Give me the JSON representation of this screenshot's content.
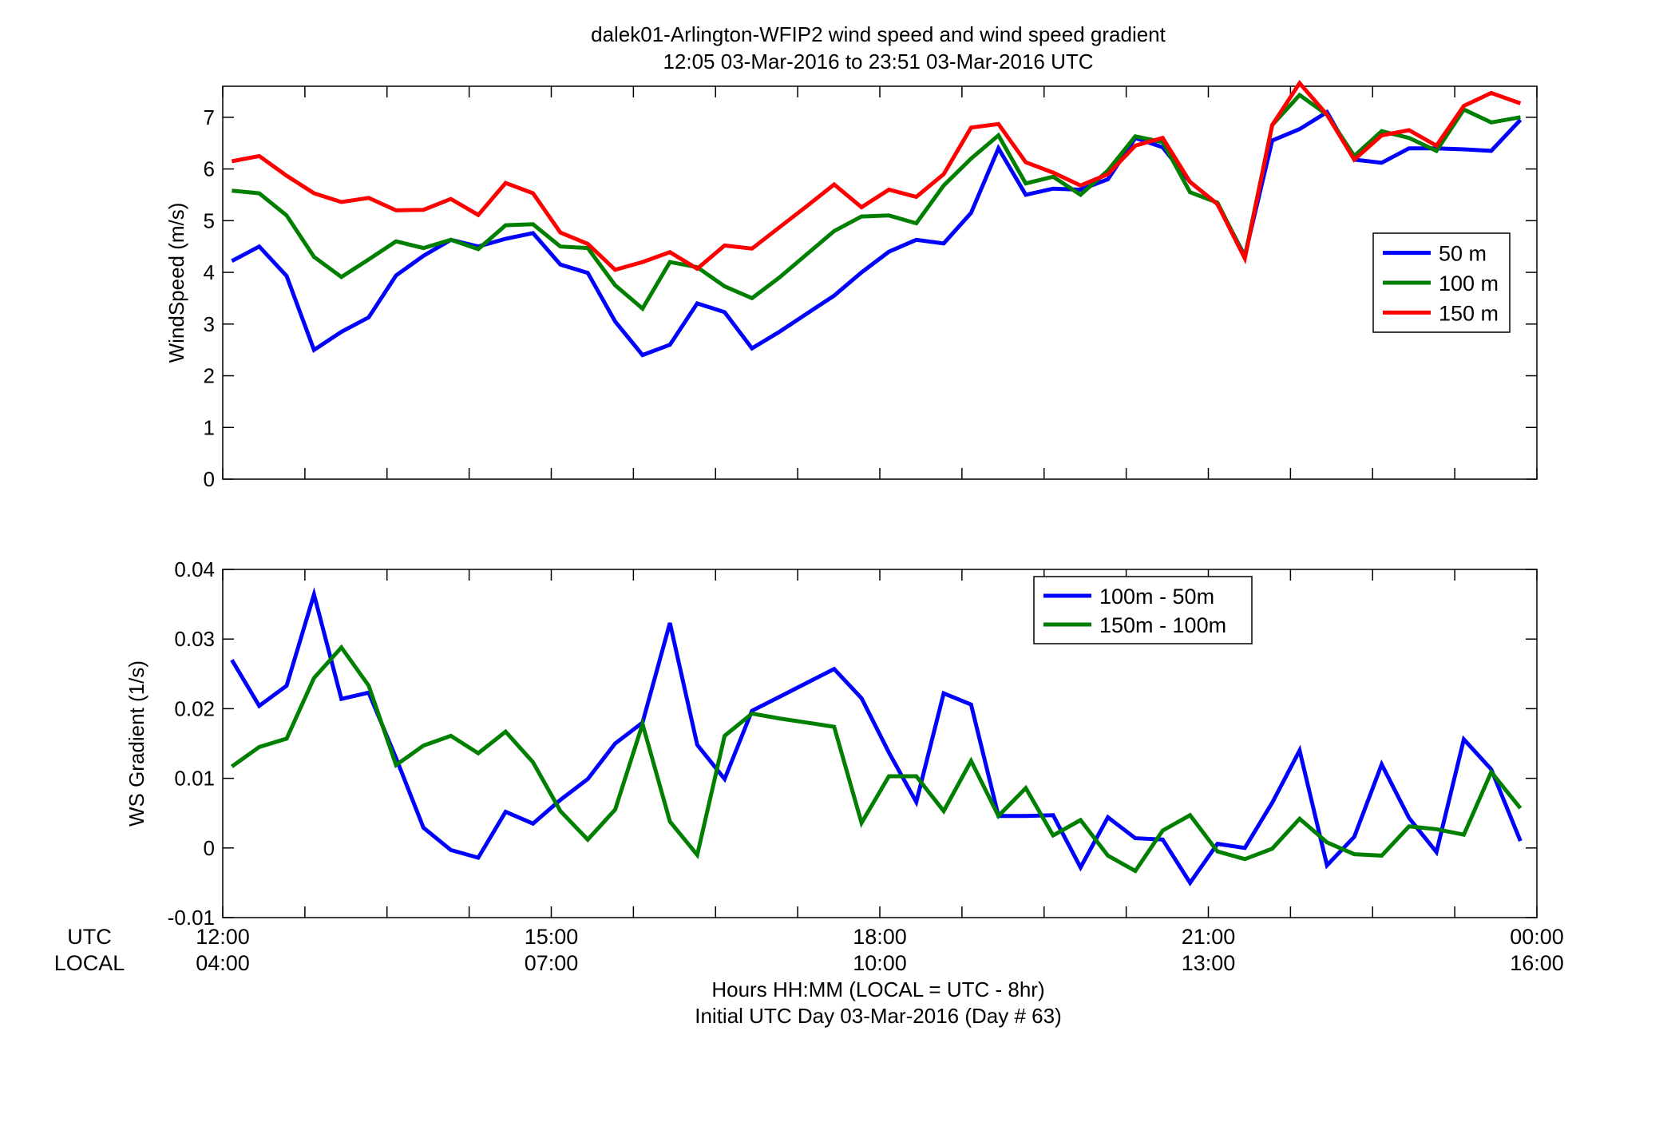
{
  "title_line1": "dalek01-Arlington-WFIP2  wind speed and wind speed gradient",
  "title_line2": "12:05 03-Mar-2016 to 23:51 03-Mar-2016  UTC",
  "xaxis": {
    "utc_label": "UTC",
    "local_label": "LOCAL",
    "utc_ticks": [
      "12:00",
      "15:00",
      "18:00",
      "21:00",
      "00:00"
    ],
    "local_ticks": [
      "04:00",
      "07:00",
      "10:00",
      "13:00",
      "16:00"
    ],
    "label_line1": "Hours HH:MM  (LOCAL = UTC - 8hr)",
    "label_line2": "Initial UTC Day 03-Mar-2016 (Day # 63)"
  },
  "colors": {
    "blue": "#0000ff",
    "green": "#007f00",
    "red": "#ff0000"
  },
  "chart_data": [
    {
      "type": "line",
      "ylabel": "WindSpeed (m/s)",
      "xlim": [
        12,
        24
      ],
      "ylim": [
        0,
        7.6
      ],
      "yticks": [
        0,
        1,
        2,
        3,
        4,
        5,
        6,
        7
      ],
      "ytick_labels": [
        "0",
        "1",
        "2",
        "3",
        "4",
        "5",
        "6",
        "7"
      ],
      "grid": false,
      "legend_position": "right",
      "x": [
        12.083,
        12.333,
        12.583,
        12.833,
        13.083,
        13.333,
        13.583,
        13.833,
        14.083,
        14.333,
        14.583,
        14.833,
        15.083,
        15.333,
        15.583,
        15.833,
        16.083,
        16.333,
        16.583,
        16.833,
        17.083,
        17.333,
        17.583,
        17.833,
        18.083,
        18.333,
        18.583,
        18.833,
        19.083,
        19.333,
        19.583,
        19.833,
        20.083,
        20.333,
        20.583,
        20.833,
        21.083,
        21.333,
        21.583,
        21.833,
        22.083,
        22.333,
        22.583,
        22.833,
        23.083,
        23.333,
        23.583,
        23.85
      ],
      "series": [
        {
          "name": "50 m",
          "color": "#0000ff",
          "values": [
            4.22,
            4.5,
            3.93,
            2.5,
            2.85,
            3.13,
            3.94,
            4.32,
            4.63,
            4.5,
            4.65,
            4.76,
            4.15,
            3.99,
            3.05,
            2.4,
            2.6,
            3.4,
            3.23,
            2.53,
            2.85,
            3.2,
            3.55,
            4.0,
            4.4,
            4.63,
            4.56,
            5.15,
            6.4,
            5.5,
            5.62,
            5.6,
            5.8,
            6.6,
            6.42,
            5.75,
            5.32,
            4.32,
            6.55,
            6.77,
            7.1,
            6.18,
            6.12,
            6.4,
            6.4,
            6.38,
            6.35,
            6.95
          ]
        },
        {
          "name": "100 m",
          "color": "#007f00",
          "values": [
            5.58,
            5.53,
            5.1,
            4.3,
            3.91,
            4.25,
            4.6,
            4.47,
            4.63,
            4.45,
            4.91,
            4.93,
            4.5,
            4.47,
            3.75,
            3.3,
            4.2,
            4.1,
            3.73,
            3.5,
            3.9,
            4.35,
            4.8,
            5.08,
            5.1,
            4.95,
            5.68,
            6.2,
            6.65,
            5.72,
            5.85,
            5.5,
            5.97,
            6.63,
            6.52,
            5.55,
            5.35,
            4.3,
            6.85,
            7.43,
            7.05,
            6.25,
            6.73,
            6.6,
            6.35,
            7.15,
            6.9,
            7.0
          ]
        },
        {
          "name": "150 m",
          "color": "#ff0000",
          "values": [
            6.15,
            6.25,
            5.87,
            5.53,
            5.36,
            5.44,
            5.2,
            5.21,
            5.42,
            5.11,
            5.73,
            5.53,
            4.77,
            4.55,
            4.05,
            4.2,
            4.39,
            4.07,
            4.52,
            4.46,
            4.87,
            5.28,
            5.7,
            5.26,
            5.6,
            5.46,
            5.9,
            6.8,
            6.87,
            6.13,
            5.93,
            5.68,
            5.9,
            6.45,
            6.6,
            5.75,
            5.32,
            4.27,
            6.85,
            7.66,
            7.05,
            6.18,
            6.65,
            6.75,
            6.45,
            7.22,
            7.47,
            7.27
          ]
        }
      ]
    },
    {
      "type": "line",
      "ylabel": "WS Gradient (1/s)",
      "xlim": [
        12,
        24
      ],
      "ylim": [
        -0.01,
        0.04
      ],
      "yticks": [
        -0.01,
        0,
        0.01,
        0.02,
        0.03,
        0.04
      ],
      "ytick_labels": [
        "-0.01",
        "0",
        "0.01",
        "0.02",
        "0.03",
        "0.04"
      ],
      "grid": false,
      "legend_position": "top-right",
      "x": [
        12.083,
        12.333,
        12.583,
        12.833,
        13.083,
        13.333,
        13.583,
        13.833,
        14.083,
        14.333,
        14.583,
        14.833,
        15.083,
        15.333,
        15.583,
        15.833,
        16.083,
        16.333,
        16.583,
        16.833,
        17.083,
        17.333,
        17.583,
        17.833,
        18.083,
        18.333,
        18.583,
        18.833,
        19.083,
        19.333,
        19.583,
        19.833,
        20.083,
        20.333,
        20.583,
        20.833,
        21.083,
        21.333,
        21.583,
        21.833,
        22.083,
        22.333,
        22.583,
        22.833,
        23.083,
        23.333,
        23.583,
        23.85
      ],
      "series": [
        {
          "name": "100m - 50m",
          "color": "#0000ff",
          "values": [
            0.027,
            0.0204,
            0.0233,
            0.0364,
            0.0214,
            0.0223,
            0.0129,
            0.0029,
            -0.0003,
            -0.0014,
            0.0052,
            0.0035,
            0.0069,
            0.0099,
            0.015,
            0.018,
            0.0323,
            0.0148,
            0.0099,
            0.0197,
            0.0217,
            0.0237,
            0.0257,
            0.0215,
            0.0137,
            0.0066,
            0.0222,
            0.0206,
            0.0046,
            0.0046,
            0.0047,
            -0.0028,
            0.0044,
            0.0014,
            0.0012,
            -0.005,
            0.0006,
            0.0,
            0.0065,
            0.014,
            -0.0025,
            0.0016,
            0.012,
            0.0043,
            -0.0006,
            0.0156,
            0.0113,
            0.001
          ]
        },
        {
          "name": "150m - 100m",
          "color": "#007f00",
          "values": [
            0.0117,
            0.0145,
            0.0157,
            0.0244,
            0.0288,
            0.0233,
            0.0119,
            0.0147,
            0.0161,
            0.0136,
            0.0167,
            0.0123,
            0.0053,
            0.0012,
            0.0055,
            0.0178,
            0.0038,
            -0.001,
            0.0161,
            0.0193,
            0.0186,
            0.018,
            0.0174,
            0.0036,
            0.0103,
            0.0103,
            0.0053,
            0.0125,
            0.0046,
            0.0086,
            0.0018,
            0.004,
            -0.0011,
            -0.0033,
            0.0025,
            0.0047,
            -0.0005,
            -0.0016,
            -0.0001,
            0.0042,
            0.0008,
            -0.0009,
            -0.0011,
            0.0031,
            0.0027,
            0.0019,
            0.0109,
            0.0057
          ]
        }
      ]
    }
  ]
}
